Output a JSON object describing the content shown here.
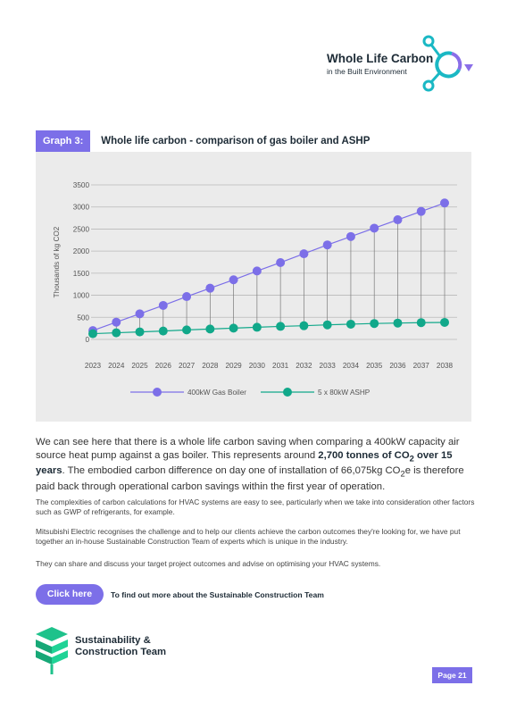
{
  "header": {
    "logo_title": "Whole Life Carbon",
    "logo_subtitle": "in the Built Environment"
  },
  "graph": {
    "tag": "Graph 3:",
    "title": "Whole life carbon - comparison of gas boiler and ASHP"
  },
  "chart_data": {
    "type": "line",
    "ylabel": "Thousands of kg CO2",
    "ylim": [
      0,
      3500
    ],
    "yticks": [
      0,
      500,
      1000,
      1500,
      2000,
      2500,
      3000,
      3500
    ],
    "x": [
      2023,
      2024,
      2025,
      2026,
      2027,
      2028,
      2029,
      2030,
      2031,
      2032,
      2033,
      2034,
      2035,
      2036,
      2037,
      2038
    ],
    "grid": "horizontal",
    "legend_position": "bottom",
    "series": [
      {
        "name": "400kW Gas Boiler",
        "color": "#7c6fe8",
        "values": [
          200,
          390,
          580,
          770,
          970,
          1160,
          1350,
          1550,
          1740,
          1940,
          2140,
          2330,
          2520,
          2710,
          2900,
          3090
        ]
      },
      {
        "name": "5 x 80kW ASHP",
        "color": "#11a88a",
        "values": [
          130,
          150,
          170,
          190,
          215,
          235,
          255,
          275,
          295,
          310,
          330,
          345,
          360,
          370,
          380,
          385
        ]
      }
    ]
  },
  "lead": {
    "p1": "We can see here that there is a whole life carbon saving when comparing a 400kW capacity air source heat pump against a gas boiler. This represents around ",
    "b1": "2,700 tonnes of CO",
    "b1_sub": "2",
    "b1_tail": " over 15 years",
    "p2": ". The embodied carbon difference on day one of installation of 66,075kg CO",
    "p2_sub": "2",
    "p2_tail": "e is therefore paid back through operational carbon savings within the first year of operation."
  },
  "paragraphs": [
    "The complexities of carbon calculations for HVAC systems are easy to see, particularly when we take into consideration other factors such as GWP of refrigerants, for example.",
    "Mitsubishi Electric recognises the challenge and to help our clients achieve the carbon outcomes they're looking for, we have put together an in-house Sustainable Construction Team of experts which is unique in the industry.",
    "They can share and discuss your target project outcomes and advise on optimising your HVAC systems."
  ],
  "cta": {
    "button": "Click here",
    "text": "To find out more about the Sustainable Construction Team"
  },
  "team": {
    "line1": "Sustainability &",
    "line2": "Construction Team"
  },
  "footer": {
    "page": "Page 21"
  },
  "colors": {
    "accent": "#7c6fe8",
    "teal": "#11a88a",
    "logo_cyan": "#1ab8c4",
    "team_green": "#1ec28b"
  }
}
